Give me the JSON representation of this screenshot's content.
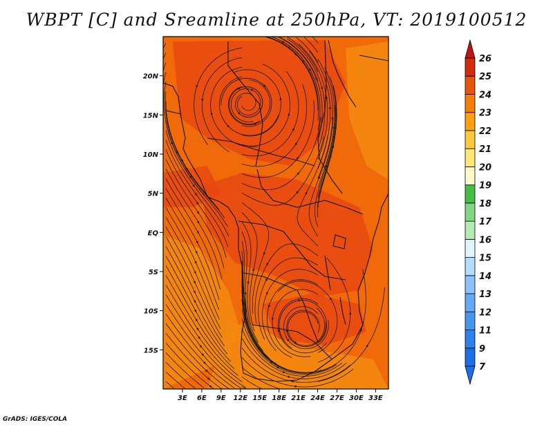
{
  "title": "WBPT [C] and Sreamline at 250hPa, VT: 2019100512",
  "credit": "GrADS: IGES/COLA",
  "map": {
    "lon_range": [
      0,
      35
    ],
    "lat_range": [
      -20,
      25
    ],
    "lon_ticks": [
      3,
      6,
      9,
      12,
      15,
      18,
      21,
      24,
      27,
      30,
      33
    ],
    "lon_tick_labels": [
      "3E",
      "6E",
      "9E",
      "12E",
      "15E",
      "18E",
      "21E",
      "24E",
      "27E",
      "30E",
      "33E"
    ],
    "lat_ticks": [
      20,
      15,
      10,
      5,
      0,
      -5,
      -10,
      -15
    ],
    "lat_tick_labels": [
      "20N",
      "15N",
      "10N",
      "5N",
      "EQ",
      "5S",
      "10S",
      "15S"
    ],
    "field_colors": {
      "background": "#F06A0A",
      "warm": "#E84810",
      "cool": "#F58A10"
    },
    "circulation_centers": [
      {
        "type": "anticyclone",
        "lon": 13,
        "lat": 16.5
      },
      {
        "type": "anticyclone",
        "lon": 22,
        "lat": -12.5
      }
    ]
  },
  "colorbar": {
    "labels": [
      "7",
      "9",
      "11",
      "12",
      "13",
      "14",
      "15",
      "16",
      "17",
      "18",
      "19",
      "20",
      "21",
      "22",
      "23",
      "24",
      "25",
      "26"
    ],
    "colors": [
      "#1E6EE6",
      "#2D82EB",
      "#4696F0",
      "#64AAF5",
      "#8CC3FA",
      "#B4DCFF",
      "#E1F5FF",
      "#B4EBB4",
      "#82D782",
      "#46BE46",
      "#FFFAC8",
      "#FFE678",
      "#FFC83C",
      "#FFA014",
      "#F57D0A",
      "#E6550A",
      "#D22D0A",
      "#BE1414"
    ]
  }
}
